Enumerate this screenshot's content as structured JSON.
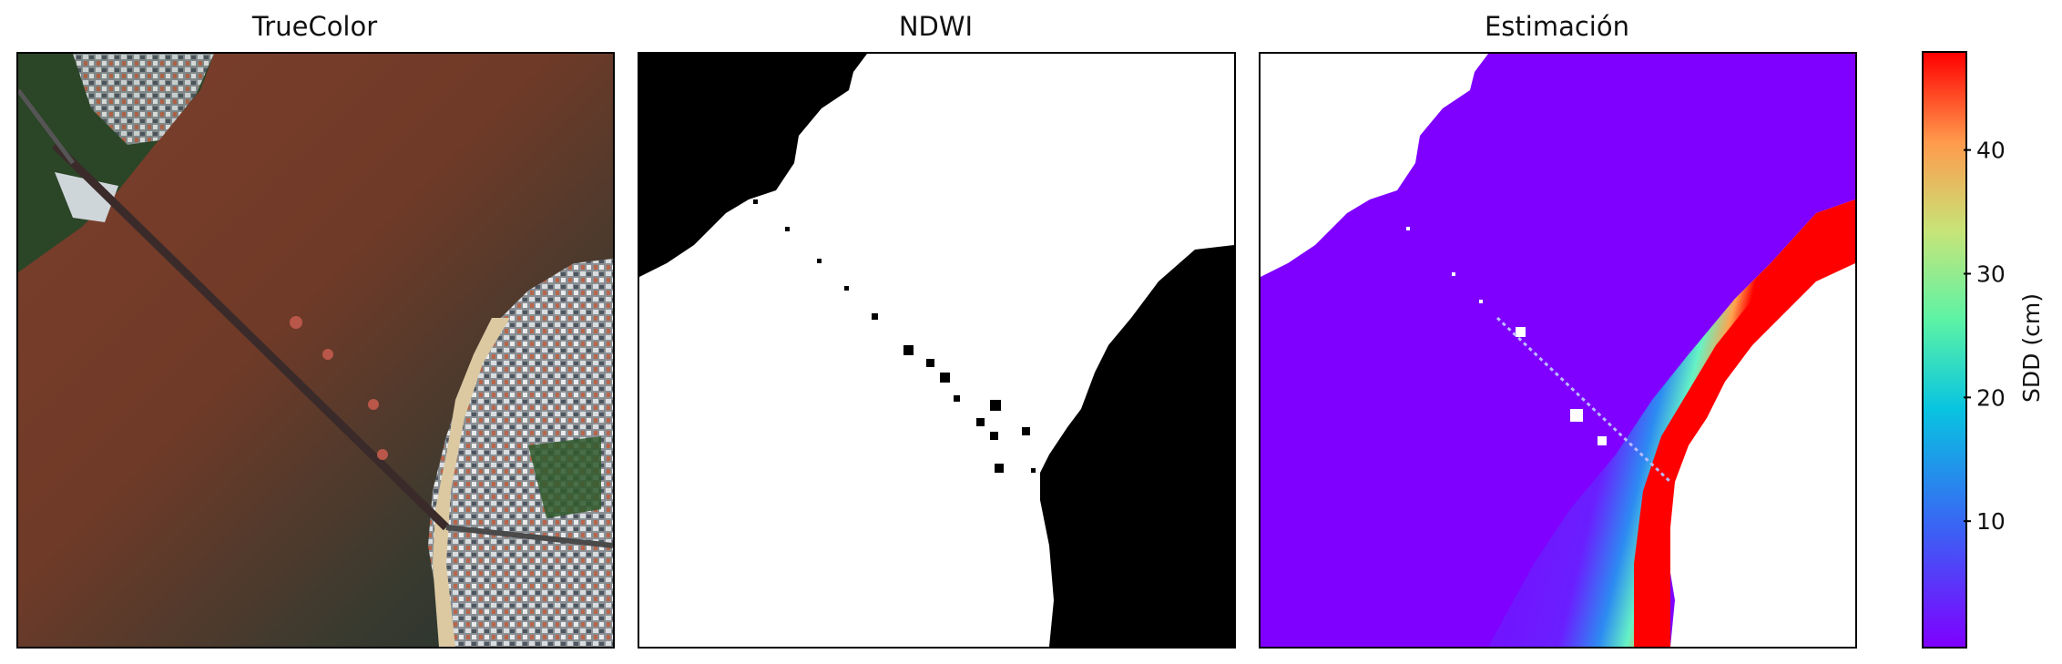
{
  "panels": {
    "truecolor_title": "TrueColor",
    "ndwi_title": "NDWI",
    "estimacion_title": "Estimación"
  },
  "colorbar": {
    "label": "SDD (cm)",
    "colormap": "rainbow",
    "vmin": 0,
    "vmax": 48,
    "ticks": [
      10,
      20,
      30,
      40
    ],
    "tick_labels": [
      "10",
      "20",
      "30",
      "40"
    ]
  },
  "colors": {
    "river_brown": "#7a3f2a",
    "river_dark": "#1f3532",
    "sand": "#d8c6a0",
    "vegetation": "#2f4a2a",
    "ndwi_water": "#ffffff",
    "ndwi_land": "#000000",
    "low_sdd": "#7f00ff",
    "high_sdd": "#ff0000"
  }
}
